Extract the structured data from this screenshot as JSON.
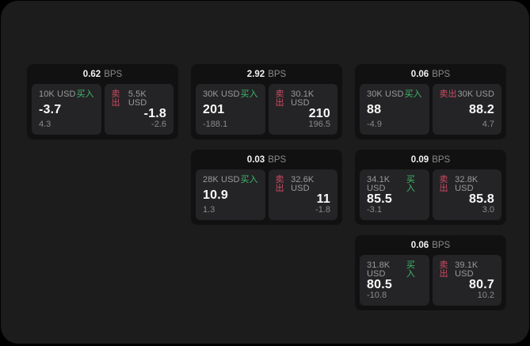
{
  "colors": {
    "page_bg": "#000000",
    "container_bg": "#1c1c1d",
    "card_bg": "#111112",
    "panel_bg": "#242426",
    "text_primary": "#fafafa",
    "text_secondary": "#8a8a8a",
    "buy": "#3dba6c",
    "sell": "#cf4a63"
  },
  "labels": {
    "bps": "BPS",
    "buy": "买入",
    "sell": "卖出"
  },
  "cards": [
    {
      "bps": "0.62",
      "row": 1,
      "col": 1,
      "buy": {
        "amount": "10K USD",
        "value": "-3.7",
        "delta": "4.3"
      },
      "sell": {
        "amount": "5.5K USD",
        "value": "-1.8",
        "delta": "-2.6"
      }
    },
    {
      "bps": "2.92",
      "row": 1,
      "col": 2,
      "buy": {
        "amount": "30K USD",
        "value": "201",
        "delta": "-188.1"
      },
      "sell": {
        "amount": "30.1K USD",
        "value": "210",
        "delta": "196.5"
      }
    },
    {
      "bps": "0.06",
      "row": 1,
      "col": 3,
      "buy": {
        "amount": "30K USD",
        "value": "88",
        "delta": "-4.9"
      },
      "sell": {
        "amount": "30K USD",
        "value": "88.2",
        "delta": "4.7"
      }
    },
    {
      "bps": "0.03",
      "row": 2,
      "col": 2,
      "buy": {
        "amount": "28K USD",
        "value": "10.9",
        "delta": "1.3"
      },
      "sell": {
        "amount": "32.6K USD",
        "value": "11",
        "delta": "-1.8"
      }
    },
    {
      "bps": "0.09",
      "row": 2,
      "col": 3,
      "buy": {
        "amount": "34.1K USD",
        "value": "85.5",
        "delta": "-3.1"
      },
      "sell": {
        "amount": "32.8K USD",
        "value": "85.8",
        "delta": "3.0"
      }
    },
    {
      "bps": "0.06",
      "row": 3,
      "col": 3,
      "buy": {
        "amount": "31.8K USD",
        "value": "80.5",
        "delta": "-10.8"
      },
      "sell": {
        "amount": "39.1K USD",
        "value": "80.7",
        "delta": "10.2"
      }
    }
  ]
}
